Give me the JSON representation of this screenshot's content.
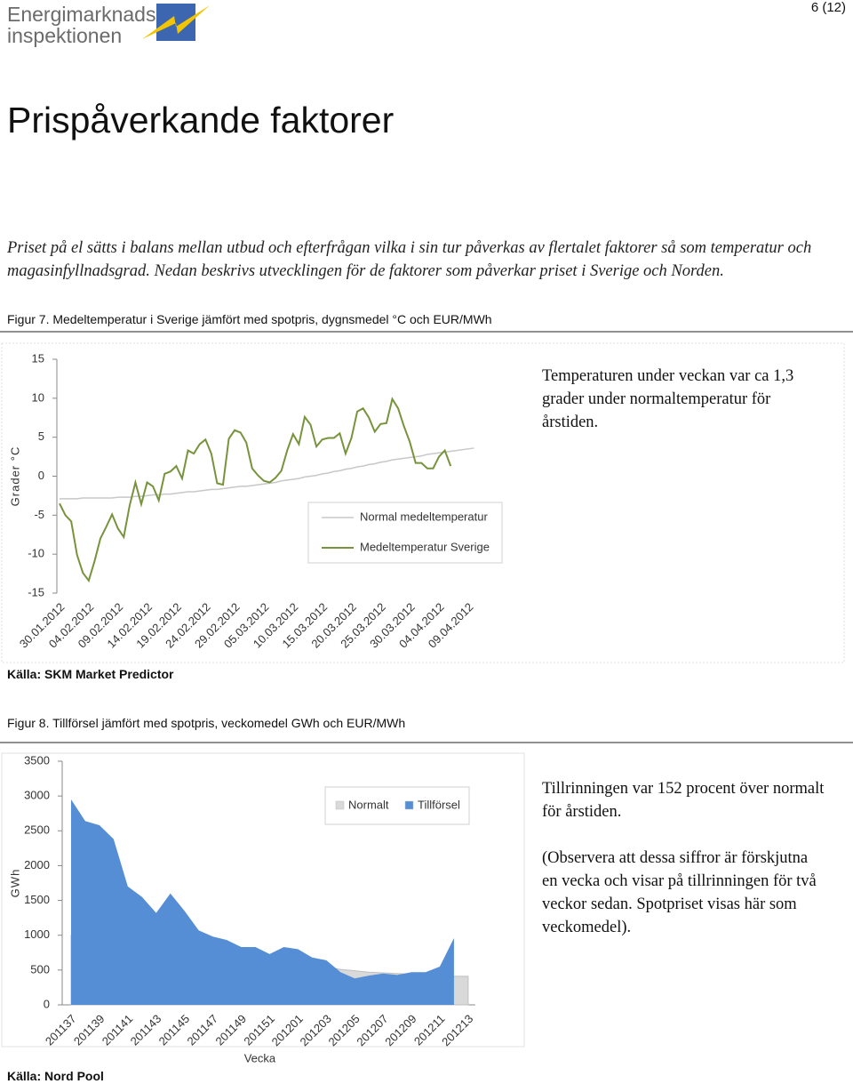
{
  "header": {
    "logo_lines": [
      "Energimarknads",
      "inspektionen"
    ],
    "page_number": "6 (12)"
  },
  "title": "Prispåverkande faktorer",
  "intro": "Priset på el sätts i balans mellan utbud och efterfrågan vilka i sin tur påverkas av flertalet faktorer så som temperatur och magasinfyllnadsgrad. Nedan beskrivs utvecklingen för de faktorer som påverkar priset i Sverige och Norden.",
  "chart_data": [
    {
      "type": "line",
      "title": "Figur 7. Medeltemperatur i Sverige jämfört med spotpris, dygnsmedel °C och EUR/MWh",
      "y_label": "Grader °C",
      "categories": [
        "30.01.2012",
        null,
        null,
        null,
        null,
        "04.02.2012",
        null,
        null,
        null,
        null,
        "09.02.2012",
        null,
        null,
        null,
        null,
        "14.02.2012",
        null,
        null,
        null,
        null,
        "19.02.2012",
        null,
        null,
        null,
        null,
        "24.02.2012",
        null,
        null,
        null,
        null,
        "29.02.2012",
        null,
        null,
        null,
        null,
        "05.03.2012",
        null,
        null,
        null,
        null,
        "10.03.2012",
        null,
        null,
        null,
        null,
        "15.03.2012",
        null,
        null,
        null,
        null,
        "20.03.2012",
        null,
        null,
        null,
        null,
        "25.03.2012",
        null,
        null,
        null,
        null,
        "30.03.2012",
        null,
        null,
        null,
        null,
        "04.04.2012",
        null,
        null,
        null,
        null,
        "09.04.2012",
        null
      ],
      "series": [
        {
          "name": "Normal medeltemperatur",
          "color": "#c8c8c8",
          "values": [
            -2.9,
            -2.9,
            -2.9,
            -2.9,
            -2.8,
            -2.8,
            -2.8,
            -2.8,
            -2.8,
            -2.8,
            -2.7,
            -2.7,
            -2.7,
            -2.6,
            -2.6,
            -2.5,
            -2.4,
            -2.4,
            -2.3,
            -2.3,
            -2.2,
            -2.1,
            -2.0,
            -2.0,
            -1.9,
            -1.8,
            -1.7,
            -1.7,
            -1.6,
            -1.5,
            -1.4,
            -1.3,
            -1.3,
            -1.2,
            -1.1,
            -1.0,
            -0.9,
            -0.8,
            -0.6,
            -0.5,
            -0.4,
            -0.3,
            -0.1,
            0.0,
            0.1,
            0.3,
            0.4,
            0.6,
            0.7,
            0.9,
            1.0,
            1.2,
            1.3,
            1.5,
            1.6,
            1.8,
            1.9,
            2.1,
            2.2,
            2.3,
            2.4,
            2.5,
            2.6,
            2.8,
            2.9,
            3.0,
            3.1,
            3.2,
            3.3,
            3.4,
            3.5,
            3.6
          ]
        },
        {
          "name": "Medeltemperatur Sverige",
          "color": "#77933c",
          "values": [
            -3.5,
            -5.0,
            -5.8,
            -10.1,
            -12.4,
            -13.4,
            -10.9,
            -8.0,
            -6.5,
            -4.9,
            -6.7,
            -7.8,
            -3.8,
            -0.8,
            -3.6,
            -0.8,
            -1.3,
            -3.1,
            0.3,
            0.6,
            1.3,
            -0.3,
            3.3,
            2.9,
            4.1,
            4.7,
            2.9,
            -0.9,
            -1.1,
            4.8,
            5.9,
            5.6,
            4.3,
            1.0,
            0.1,
            -0.6,
            -0.8,
            -0.2,
            0.7,
            3.3,
            5.4,
            4.1,
            7.6,
            6.6,
            3.8,
            4.7,
            4.9,
            4.9,
            5.5,
            2.9,
            4.9,
            8.3,
            8.7,
            7.5,
            5.7,
            6.7,
            6.8,
            9.9,
            8.7,
            6.4,
            4.4,
            1.7,
            1.7,
            1.0,
            1.0,
            2.5,
            3.3,
            1.3,
            null,
            null,
            null,
            null
          ]
        }
      ],
      "ylim": [
        -15,
        15
      ],
      "yticks": [
        -15,
        -10,
        -5,
        0,
        5,
        10,
        15
      ],
      "grid": false,
      "legend": "center",
      "annotation": "Temperaturen under veckan var ca 1,3 grader under normaltemperatur för årstiden.",
      "source": "Källa: SKM Market Predictor"
    },
    {
      "type": "area",
      "title": "Figur 8. Tillförsel jämfört med spotpris, veckomedel GWh och EUR/MWh",
      "y_label": "GWh",
      "x_label": "Vecka",
      "categories": [
        "201137",
        null,
        "201139",
        null,
        "201141",
        null,
        "201143",
        null,
        "201145",
        null,
        "201147",
        null,
        "201149",
        null,
        "201151",
        null,
        "201201",
        null,
        "201203",
        null,
        "201205",
        null,
        "201207",
        null,
        "201209",
        null,
        "201211",
        null,
        "201213"
      ],
      "series": [
        {
          "name": "Normalt",
          "color": "#d9d9d9",
          "values": [
            1000,
            960,
            930,
            900,
            870,
            840,
            810,
            780,
            750,
            720,
            700,
            680,
            660,
            640,
            620,
            600,
            580,
            560,
            540,
            510,
            490,
            470,
            460,
            450,
            440,
            430,
            420,
            410,
            410
          ]
        },
        {
          "name": "Tillförsel",
          "color": "#558ed5",
          "values": [
            2950,
            2640,
            2580,
            2380,
            1700,
            1550,
            1320,
            1600,
            1350,
            1070,
            980,
            930,
            830,
            830,
            730,
            830,
            800,
            680,
            640,
            470,
            380,
            420,
            450,
            430,
            470,
            470,
            550,
            960,
            null
          ]
        }
      ],
      "ylim": [
        0,
        3500
      ],
      "yticks": [
        0,
        500,
        1000,
        1500,
        2000,
        2500,
        3000,
        3500
      ],
      "grid": false,
      "legend": "top",
      "annotations": [
        "Tillrinningen var 152 procent över normalt för årstiden.",
        "(Observera att dessa siffror är förskjutna en vecka och visar på tillrinningen för två veckor sedan. Spotpriset visas här som veckomedel)."
      ],
      "source": "Källa: Nord Pool"
    }
  ]
}
